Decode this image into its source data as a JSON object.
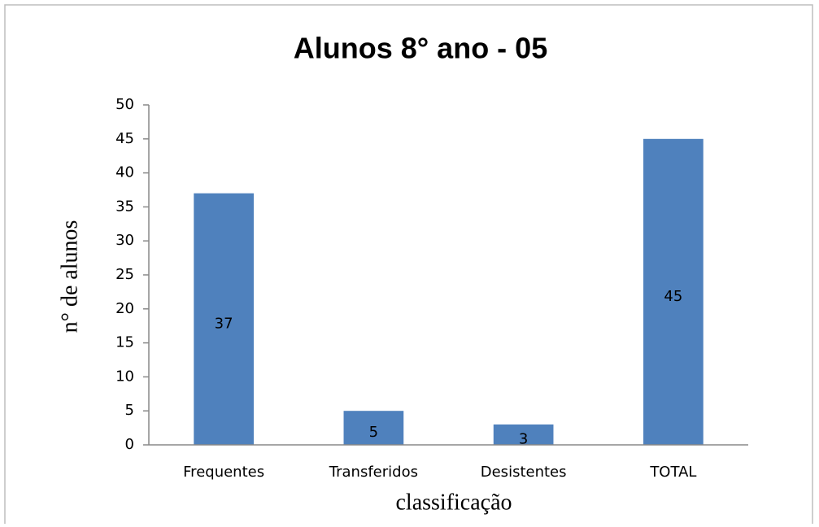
{
  "chart_data": {
    "type": "bar",
    "title": "Alunos 8° ano - 05",
    "xlabel": "classificação",
    "ylabel": "n° de alunos",
    "categories": [
      "Frequentes",
      "Transferidos",
      "Desistentes",
      "TOTAL"
    ],
    "values": [
      37,
      5,
      3,
      45
    ],
    "color": "#4f81bd",
    "ylim": [
      0,
      50
    ],
    "yticks": [
      0,
      5,
      10,
      15,
      20,
      25,
      30,
      35,
      40,
      45,
      50
    ],
    "grid": false
  }
}
